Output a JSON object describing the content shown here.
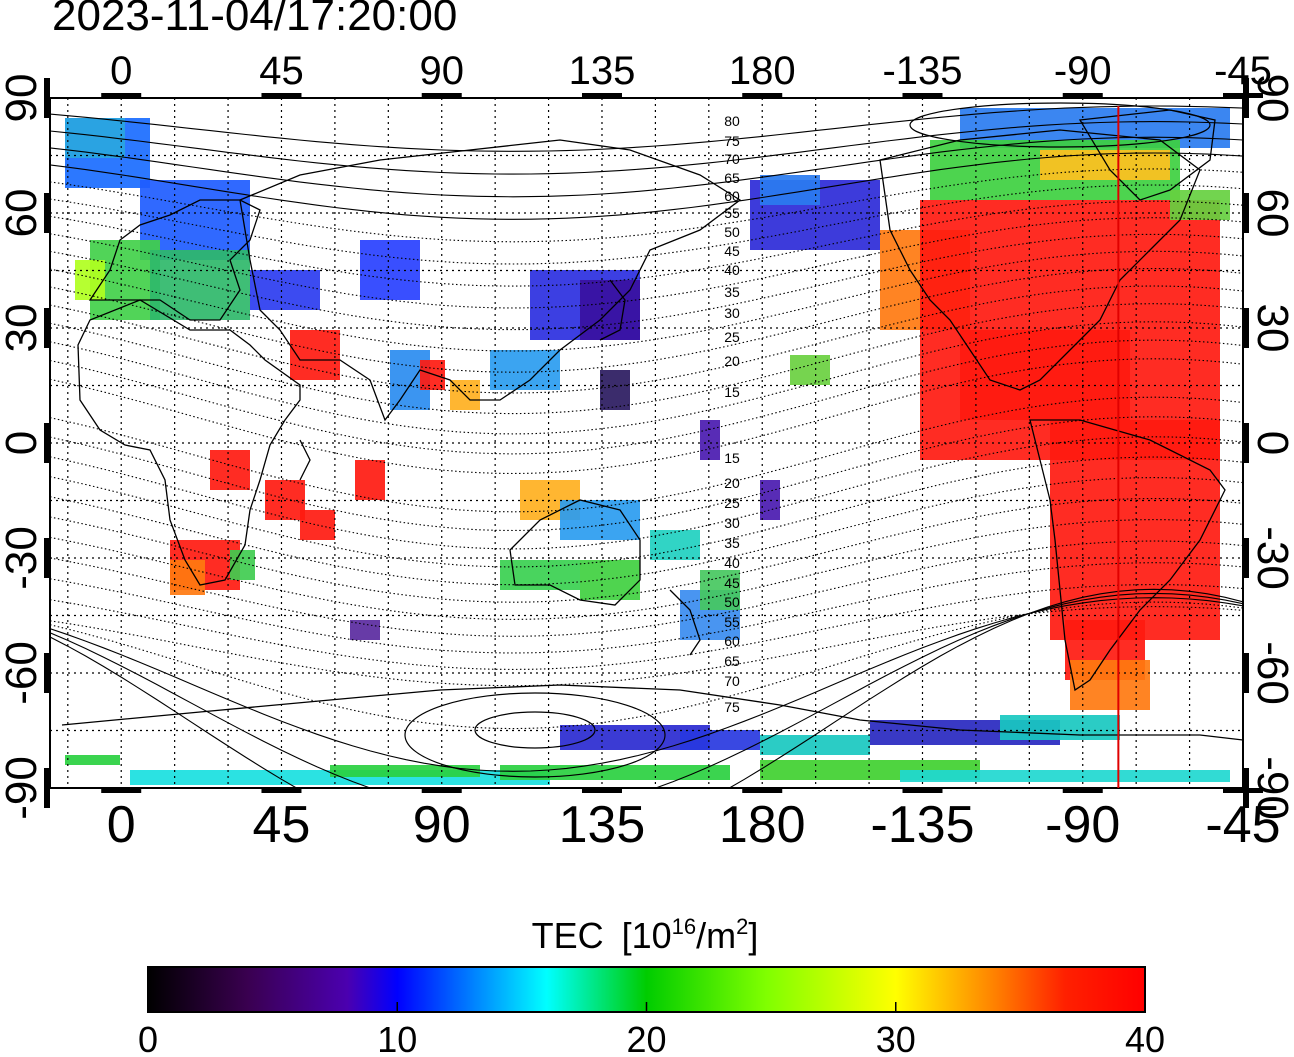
{
  "timestamp": "2023-11-04/17:20:00",
  "axes": {
    "lon_ticks": [
      "0",
      "45",
      "90",
      "135",
      "180",
      "-135",
      "-90",
      "-45"
    ],
    "lat_ticks": [
      "90",
      "60",
      "30",
      "0",
      "-30",
      "-60",
      "-90"
    ],
    "lon_range": [
      -20,
      315
    ],
    "lat_range": [
      -90,
      90
    ]
  },
  "contour_labels": [
    "80",
    "75",
    "70",
    "65",
    "60",
    "55",
    "50",
    "45",
    "40",
    "35",
    "30",
    "25",
    "20",
    "15",
    "15",
    "20",
    "25",
    "30",
    "35",
    "40",
    "45",
    "50",
    "55",
    "60",
    "65",
    "70",
    "75"
  ],
  "terminator_lon": -80,
  "colorbar": {
    "title": "TEC",
    "unit_base": "[10",
    "unit_exp": "16",
    "unit_mid": "/m",
    "unit_exp2": "2",
    "unit_end": "]",
    "ticks": [
      "0",
      "10",
      "20",
      "30",
      "40"
    ],
    "min": 0,
    "max": 40
  },
  "colors": {
    "terminator": "#e00000",
    "frame": "#000000"
  }
}
